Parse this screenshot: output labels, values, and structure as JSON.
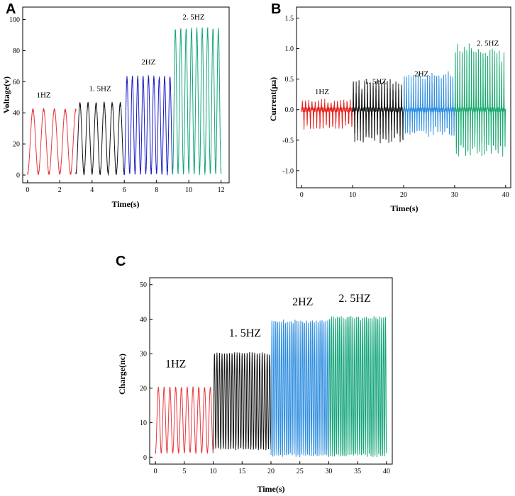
{
  "chart_data": [
    {
      "panel": "A",
      "type": "line",
      "xlabel": "Time(s)",
      "ylabel": "Voltage(v)",
      "xlim": [
        -0.3,
        12.5
      ],
      "ylim": [
        -5,
        108
      ],
      "xticks": [
        0,
        2,
        4,
        6,
        8,
        10,
        12
      ],
      "yticks": [
        0,
        20,
        40,
        60,
        80,
        100
      ],
      "series": [
        {
          "name": "1HZ",
          "label": "1HZ",
          "color": "#e8363c",
          "t_start": 0.0,
          "t_end": 3.0,
          "freq": 1.5,
          "min": 0,
          "max": 43,
          "label_x": 1.0,
          "label_y": 50
        },
        {
          "name": "1.5HZ",
          "label": "1. 5HZ",
          "color": "#111111",
          "t_start": 3.0,
          "t_end": 6.0,
          "freq": 2.0,
          "min": 0,
          "max": 47,
          "label_x": 4.5,
          "label_y": 54
        },
        {
          "name": "2HZ",
          "label": "2HZ",
          "color": "#1a1ac8",
          "t_start": 6.0,
          "t_end": 9.0,
          "freq": 3.0,
          "min": 0,
          "max": 64,
          "label_x": 7.5,
          "label_y": 71
        },
        {
          "name": "2.5HZ",
          "label": "2. 5HZ",
          "color": "#14a57a",
          "t_start": 9.0,
          "t_end": 12.0,
          "freq": 3.0,
          "min": 0,
          "max": 95,
          "label_x": 10.3,
          "label_y": 100
        }
      ]
    },
    {
      "panel": "B",
      "type": "line",
      "xlabel": "Time(s)",
      "ylabel": "Current(μa)",
      "xlim": [
        -1,
        41
      ],
      "ylim": [
        -1.28,
        1.68
      ],
      "xticks": [
        0,
        10,
        20,
        30,
        40
      ],
      "yticks": [
        -1.0,
        -0.5,
        0.0,
        0.5,
        1.0,
        1.5
      ],
      "series": [
        {
          "name": "1HZ",
          "label": "1HZ",
          "color": "#e8201c",
          "t_start": 0,
          "t_end": 10,
          "freq": 1.6,
          "min": -0.32,
          "max": 0.14,
          "label_x": 4,
          "label_y": 0.25
        },
        {
          "name": "1.5HZ",
          "label": "1. 5HZ",
          "color": "#111111",
          "t_start": 10,
          "t_end": 20,
          "freq": 1.8,
          "min": -0.55,
          "max": 0.48,
          "label_x": 14.5,
          "label_y": 0.42
        },
        {
          "name": "2HZ",
          "label": "2HZ",
          "color": "#2e8ee0",
          "t_start": 20,
          "t_end": 30,
          "freq": 2.2,
          "min": -0.42,
          "max": 0.62,
          "label_x": 23.5,
          "label_y": 0.55
        },
        {
          "name": "2.5HZ",
          "label": "2. 5HZ",
          "color": "#18a86e",
          "t_start": 30,
          "t_end": 40,
          "freq": 2.2,
          "min": -0.78,
          "max": 1.05,
          "label_x": 36.5,
          "label_y": 1.05
        }
      ]
    },
    {
      "panel": "C",
      "type": "line",
      "xlabel": "Time(s)",
      "ylabel": "Charge(nc)",
      "xlim": [
        -1,
        41
      ],
      "ylim": [
        -2,
        52
      ],
      "xticks": [
        0,
        5,
        10,
        15,
        20,
        25,
        30,
        35,
        40
      ],
      "yticks": [
        0,
        10,
        20,
        30,
        40,
        50
      ],
      "series": [
        {
          "name": "1HZ",
          "label": "1HZ",
          "color": "#e8363c",
          "t_start": 0,
          "t_end": 10,
          "freq": 1.0,
          "min": 1,
          "max": 20.5,
          "label_x": 3.5,
          "label_y": 26
        },
        {
          "name": "1.5HZ",
          "label": "1. 5HZ",
          "color": "#111111",
          "t_start": 10,
          "t_end": 20,
          "freq": 2.3,
          "min": 2,
          "max": 30.5,
          "label_x": 15.5,
          "label_y": 35
        },
        {
          "name": "2HZ",
          "label": "2HZ",
          "color": "#2e8ee0",
          "t_start": 20,
          "t_end": 30,
          "freq": 3.0,
          "min": 0,
          "max": 40,
          "label_x": 25.5,
          "label_y": 44
        },
        {
          "name": "2.5HZ",
          "label": "2. 5HZ",
          "color": "#14a57a",
          "t_start": 30,
          "t_end": 40,
          "freq": 3.0,
          "min": 0,
          "max": 41,
          "label_x": 34.5,
          "label_y": 45
        }
      ]
    }
  ]
}
